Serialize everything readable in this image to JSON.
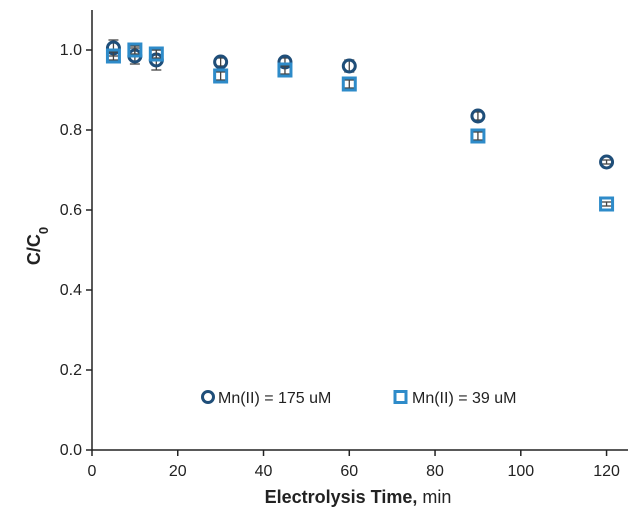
{
  "chart_data": {
    "type": "scatter",
    "xlabel_bold": "Electrolysis Time,",
    "xlabel_rest": " min",
    "ylabel_main": "C/C",
    "ylabel_sub": "0",
    "xlim": [
      0,
      125
    ],
    "ylim": [
      0,
      1.1
    ],
    "x_ticks": [
      "0",
      "20",
      "40",
      "60",
      "80",
      "100",
      "120"
    ],
    "y_ticks": [
      "0.0",
      "0.2",
      "0.4",
      "0.6",
      "0.8",
      "1.0"
    ],
    "grid": false,
    "legend_position": "bottom-center",
    "series": [
      {
        "name": "Mn(II) = 175 uM",
        "marker": "circle",
        "color": "#1f4e79",
        "points": [
          {
            "x": 5,
            "y": 1.005,
            "err": 0.02
          },
          {
            "x": 10,
            "y": 0.985,
            "err": 0.02
          },
          {
            "x": 15,
            "y": 0.975,
            "err": 0.025
          },
          {
            "x": 30,
            "y": 0.97,
            "err": 0.01
          },
          {
            "x": 45,
            "y": 0.97,
            "err": 0.01
          },
          {
            "x": 60,
            "y": 0.96,
            "err": 0.015
          },
          {
            "x": 90,
            "y": 0.835,
            "err": 0.01
          },
          {
            "x": 120,
            "y": 0.72,
            "err": 0.005
          }
        ]
      },
      {
        "name": "Mn(II) = 39 uM",
        "marker": "square",
        "color": "#2e8bc9",
        "points": [
          {
            "x": 5,
            "y": 0.985,
            "err": 0.01
          },
          {
            "x": 10,
            "y": 1.0,
            "err": 0.01
          },
          {
            "x": 15,
            "y": 0.99,
            "err": 0.01
          },
          {
            "x": 30,
            "y": 0.935,
            "err": 0.01
          },
          {
            "x": 45,
            "y": 0.95,
            "err": 0.01
          },
          {
            "x": 60,
            "y": 0.915,
            "err": 0.01
          },
          {
            "x": 90,
            "y": 0.785,
            "err": 0.01
          },
          {
            "x": 120,
            "y": 0.615,
            "err": 0.005
          }
        ]
      }
    ]
  }
}
